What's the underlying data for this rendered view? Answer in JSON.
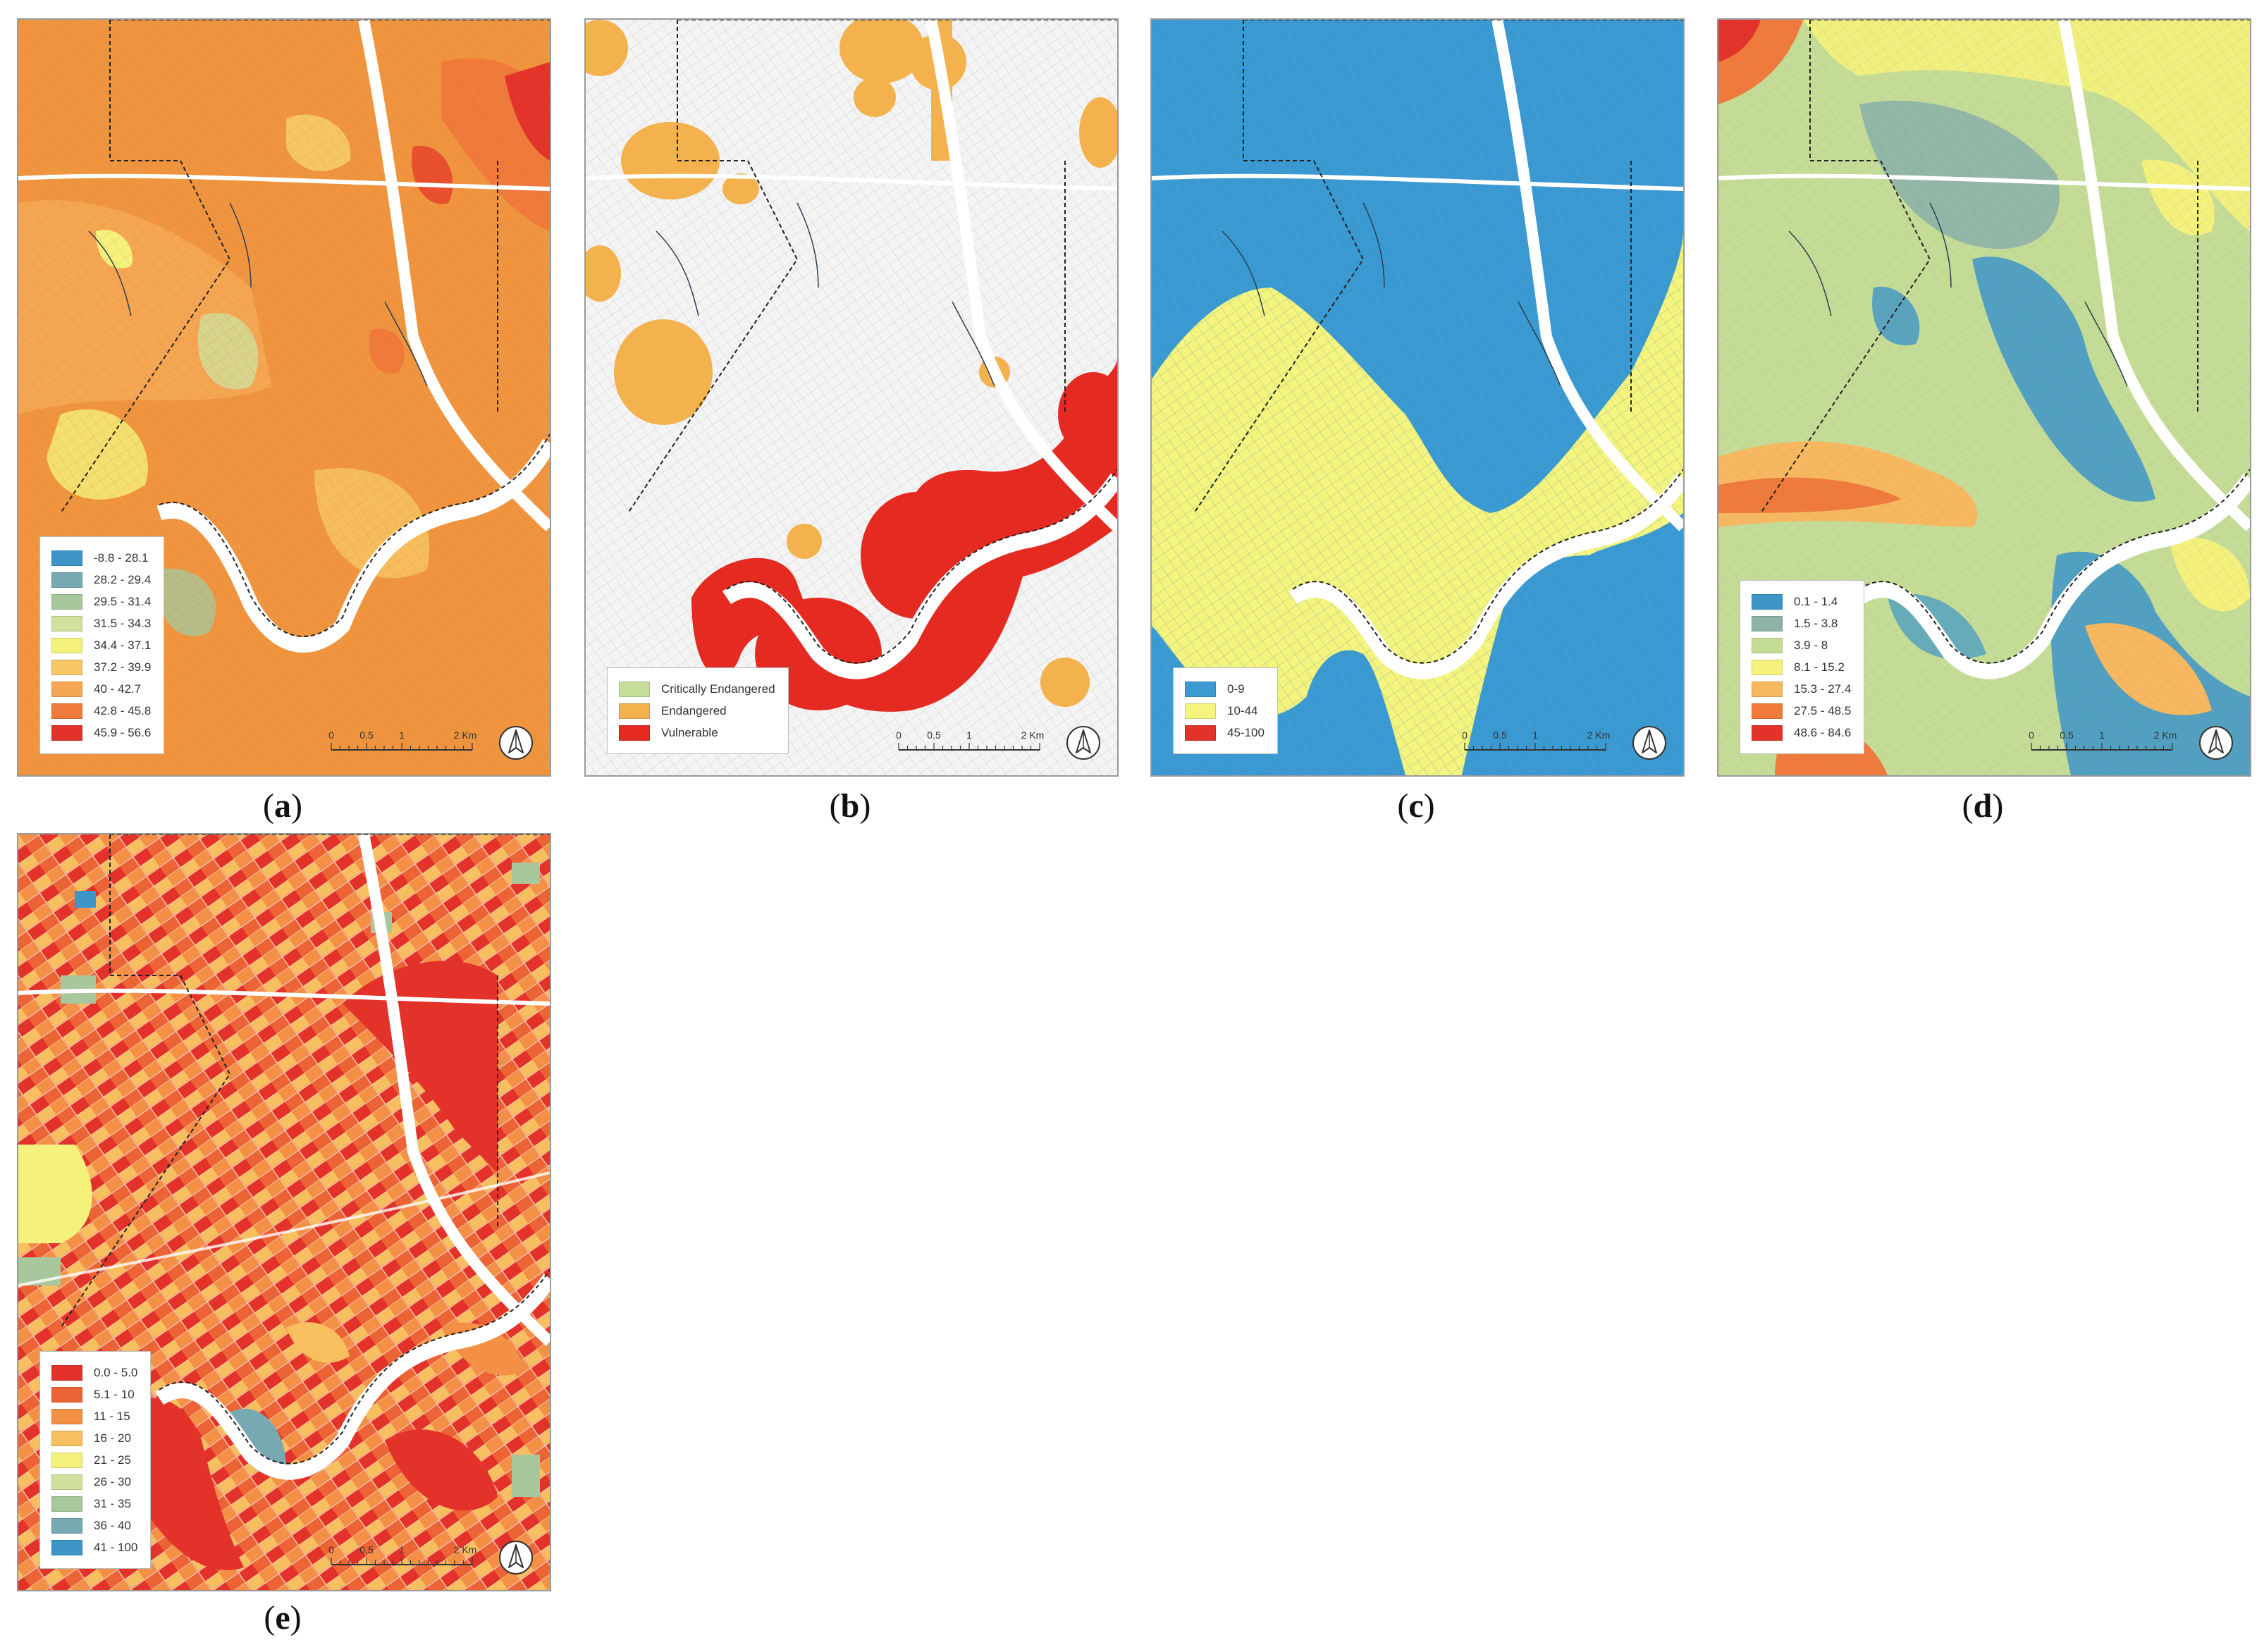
{
  "panels": [
    {
      "id": "a",
      "caption_letter": "a",
      "legend": [
        {
          "label": "-8.8 - 28.1",
          "color": "#3d95c8"
        },
        {
          "label": "28.2 - 29.4",
          "color": "#76a9b2"
        },
        {
          "label": "29.5 - 31.4",
          "color": "#a9c79c"
        },
        {
          "label": "31.5 - 34.3",
          "color": "#cfe19c"
        },
        {
          "label": "34.4 - 37.1",
          "color": "#f4f27c"
        },
        {
          "label": "37.2 - 39.9",
          "color": "#f7c765"
        },
        {
          "label": "40 - 42.7",
          "color": "#f5a653"
        },
        {
          "label": "42.8 - 45.8",
          "color": "#ef7a3c"
        },
        {
          "label": "45.9 - 56.6",
          "color": "#e3322a"
        }
      ]
    },
    {
      "id": "b",
      "caption_letter": "b",
      "legend": [
        {
          "label": "Critically Endangered",
          "color": "#c5df9a"
        },
        {
          "label": "Endangered",
          "color": "#f3b24e"
        },
        {
          "label": "Vulnerable",
          "color": "#e52a22"
        }
      ]
    },
    {
      "id": "c",
      "caption_letter": "c",
      "legend": [
        {
          "label": "0-9",
          "color": "#3b9ad1"
        },
        {
          "label": "10-44",
          "color": "#f4f47e"
        },
        {
          "label": "45-100",
          "color": "#e3322a"
        }
      ]
    },
    {
      "id": "d",
      "caption_letter": "d",
      "legend": [
        {
          "label": "0.1 - 1.4",
          "color": "#3d95c8"
        },
        {
          "label": "1.5 - 3.8",
          "color": "#8db3a7"
        },
        {
          "label": "3.9 - 8",
          "color": "#c5dc97"
        },
        {
          "label": "8.1 - 15.2",
          "color": "#f4f27c"
        },
        {
          "label": "15.3 - 27.4",
          "color": "#f7b860"
        },
        {
          "label": "27.5 - 48.5",
          "color": "#ef7a3c"
        },
        {
          "label": "48.6 - 84.6",
          "color": "#e3322a"
        }
      ]
    },
    {
      "id": "e",
      "caption_letter": "e",
      "legend": [
        {
          "label": "0.0 - 5.0",
          "color": "#e3322a"
        },
        {
          "label": "5.1 - 10",
          "color": "#ec6435"
        },
        {
          "label": "11 - 15",
          "color": "#f39046"
        },
        {
          "label": "16 - 20",
          "color": "#f7bf5f"
        },
        {
          "label": "21 - 25",
          "color": "#f4f27c"
        },
        {
          "label": "26 - 30",
          "color": "#cfe19c"
        },
        {
          "label": "31 - 35",
          "color": "#a9c79c"
        },
        {
          "label": "36 - 40",
          "color": "#76a9b2"
        },
        {
          "label": "41 - 100",
          "color": "#3d95c8"
        }
      ]
    }
  ],
  "scalebar": {
    "ticks": [
      "0",
      "0.5",
      "1",
      "2 Km"
    ]
  },
  "colors": {
    "road": "#ffffff",
    "boundary": "#222222",
    "river": "#ffffff",
    "stream": "#2c3e50"
  }
}
